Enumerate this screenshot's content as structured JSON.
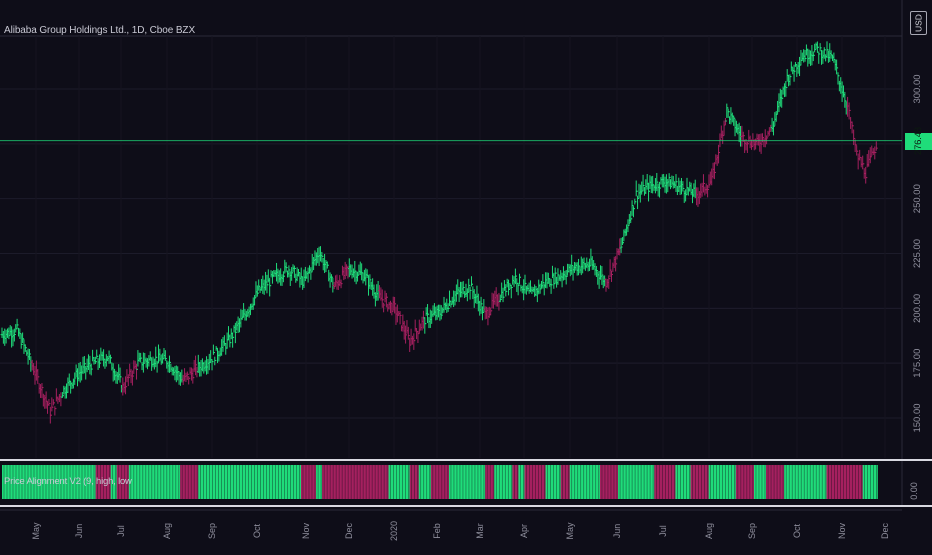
{
  "header": {
    "title": "Alibaba Group Holdings Ltd., 1D, Cboe BZX",
    "currency": "USD"
  },
  "indicator": {
    "label": "Price Alignment V2 (9, high, low",
    "zero_label": "0.00"
  },
  "colors": {
    "background": "#0e0d18",
    "up": "#1fdc7a",
    "down": "#a5205f",
    "last_price": "#1fdc7a",
    "grid": "#1c1b2a"
  },
  "chart_data": [
    {
      "type": "ohlc-bar",
      "title": "Alibaba Group Holdings Ltd., 1D, Cboe BZX",
      "y_axis": {
        "ticks": [
          150,
          175,
          200,
          225,
          250,
          300
        ],
        "tick_labels": [
          "150.00",
          "175.00",
          "200.00",
          "225.00",
          "250.00",
          "300.00"
        ],
        "ylim": [
          143,
          336
        ],
        "side": "right"
      },
      "x_axis": {
        "tick_labels": [
          "May",
          "Jun",
          "Jul",
          "Aug",
          "Sep",
          "Oct",
          "Nov",
          "Dec",
          "2020",
          "Feb",
          "Mar",
          "Apr",
          "May",
          "Jun",
          "Jul",
          "Aug",
          "Sep",
          "Oct",
          "Nov",
          "Dec"
        ]
      },
      "last_price": 276.48,
      "last_price_label": "276.48",
      "close_series_approx": [
        {
          "m": 0.0,
          "close": 188,
          "dir": "up"
        },
        {
          "m": 0.5,
          "close": 190,
          "dir": "up"
        },
        {
          "m": 1.0,
          "close": 174,
          "dir": "down"
        },
        {
          "m": 1.6,
          "close": 153,
          "dir": "down"
        },
        {
          "m": 2.0,
          "close": 162,
          "dir": "up"
        },
        {
          "m": 2.5,
          "close": 170,
          "dir": "up"
        },
        {
          "m": 3.0,
          "close": 175,
          "dir": "up"
        },
        {
          "m": 3.5,
          "close": 178,
          "dir": "up"
        },
        {
          "m": 4.0,
          "close": 164,
          "dir": "down"
        },
        {
          "m": 4.5,
          "close": 175,
          "dir": "up"
        },
        {
          "m": 5.0,
          "close": 177,
          "dir": "up"
        },
        {
          "m": 5.5,
          "close": 176,
          "dir": "up"
        },
        {
          "m": 6.0,
          "close": 167,
          "dir": "down"
        },
        {
          "m": 6.5,
          "close": 173,
          "dir": "up"
        },
        {
          "m": 7.0,
          "close": 178,
          "dir": "up"
        },
        {
          "m": 7.5,
          "close": 185,
          "dir": "up"
        },
        {
          "m": 8.0,
          "close": 196,
          "dir": "up"
        },
        {
          "m": 8.5,
          "close": 208,
          "dir": "up"
        },
        {
          "m": 9.0,
          "close": 214,
          "dir": "up"
        },
        {
          "m": 9.5,
          "close": 218,
          "dir": "up"
        },
        {
          "m": 10.0,
          "close": 212,
          "dir": "up"
        },
        {
          "m": 10.5,
          "close": 226,
          "dir": "up"
        },
        {
          "m": 11.0,
          "close": 210,
          "dir": "down"
        },
        {
          "m": 11.5,
          "close": 218,
          "dir": "up"
        },
        {
          "m": 12.0,
          "close": 215,
          "dir": "up"
        },
        {
          "m": 12.5,
          "close": 205,
          "dir": "down"
        },
        {
          "m": 13.0,
          "close": 200,
          "dir": "down"
        },
        {
          "m": 13.5,
          "close": 185,
          "dir": "down"
        },
        {
          "m": 14.0,
          "close": 195,
          "dir": "up"
        },
        {
          "m": 14.5,
          "close": 198,
          "dir": "up"
        },
        {
          "m": 15.0,
          "close": 206,
          "dir": "up"
        },
        {
          "m": 15.5,
          "close": 210,
          "dir": "up"
        },
        {
          "m": 16.0,
          "close": 197,
          "dir": "down"
        },
        {
          "m": 16.5,
          "close": 206,
          "dir": "up"
        },
        {
          "m": 17.0,
          "close": 214,
          "dir": "up"
        },
        {
          "m": 17.5,
          "close": 206,
          "dir": "up"
        },
        {
          "m": 18.0,
          "close": 212,
          "dir": "up"
        },
        {
          "m": 18.5,
          "close": 215,
          "dir": "up"
        },
        {
          "m": 19.0,
          "close": 219,
          "dir": "up"
        },
        {
          "m": 19.5,
          "close": 220,
          "dir": "up"
        },
        {
          "m": 20.0,
          "close": 212,
          "dir": "down"
        },
        {
          "m": 20.5,
          "close": 228,
          "dir": "up"
        },
        {
          "m": 21.0,
          "close": 252,
          "dir": "up"
        },
        {
          "m": 21.5,
          "close": 256,
          "dir": "up"
        },
        {
          "m": 22.0,
          "close": 258,
          "dir": "up"
        },
        {
          "m": 22.5,
          "close": 255,
          "dir": "up"
        },
        {
          "m": 23.0,
          "close": 252,
          "dir": "down"
        },
        {
          "m": 23.5,
          "close": 258,
          "dir": "down"
        },
        {
          "m": 24.0,
          "close": 290,
          "dir": "up"
        },
        {
          "m": 24.5,
          "close": 278,
          "dir": "down"
        },
        {
          "m": 25.0,
          "close": 275,
          "dir": "down"
        },
        {
          "m": 25.5,
          "close": 282,
          "dir": "up"
        },
        {
          "m": 26.0,
          "close": 305,
          "dir": "up"
        },
        {
          "m": 26.5,
          "close": 315,
          "dir": "up"
        },
        {
          "m": 27.0,
          "close": 318,
          "dir": "up"
        },
        {
          "m": 27.5,
          "close": 314,
          "dir": "up"
        },
        {
          "m": 28.0,
          "close": 292,
          "dir": "down"
        },
        {
          "m": 28.3,
          "close": 270,
          "dir": "down"
        },
        {
          "m": 28.6,
          "close": 262,
          "dir": "down"
        },
        {
          "m": 29.0,
          "close": 276.48,
          "dir": "up"
        }
      ]
    },
    {
      "type": "histogram",
      "title": "Price Alignment V2 (9, high, low",
      "y_axis": {
        "tick_labels": [
          "0.00"
        ]
      },
      "segments": [
        {
          "dir": "up",
          "from": 0.0,
          "to": 3.1
        },
        {
          "dir": "down",
          "from": 3.1,
          "to": 3.6
        },
        {
          "dir": "up",
          "from": 3.6,
          "to": 3.8
        },
        {
          "dir": "down",
          "from": 3.8,
          "to": 4.2
        },
        {
          "dir": "up",
          "from": 4.2,
          "to": 5.9
        },
        {
          "dir": "down",
          "from": 5.9,
          "to": 6.5
        },
        {
          "dir": "up",
          "from": 6.5,
          "to": 9.9
        },
        {
          "dir": "down",
          "from": 9.9,
          "to": 10.4
        },
        {
          "dir": "up",
          "from": 10.4,
          "to": 10.6
        },
        {
          "dir": "down",
          "from": 10.6,
          "to": 12.8
        },
        {
          "dir": "up",
          "from": 12.8,
          "to": 13.5
        },
        {
          "dir": "down",
          "from": 13.5,
          "to": 13.8
        },
        {
          "dir": "up",
          "from": 13.8,
          "to": 14.2
        },
        {
          "dir": "down",
          "from": 14.2,
          "to": 14.8
        },
        {
          "dir": "up",
          "from": 14.8,
          "to": 16.0
        },
        {
          "dir": "down",
          "from": 16.0,
          "to": 16.3
        },
        {
          "dir": "up",
          "from": 16.3,
          "to": 16.9
        },
        {
          "dir": "down",
          "from": 16.9,
          "to": 17.1
        },
        {
          "dir": "up",
          "from": 17.1,
          "to": 17.3
        },
        {
          "dir": "down",
          "from": 17.3,
          "to": 18.0
        },
        {
          "dir": "up",
          "from": 18.0,
          "to": 18.5
        },
        {
          "dir": "down",
          "from": 18.5,
          "to": 18.8
        },
        {
          "dir": "up",
          "from": 18.8,
          "to": 19.8
        },
        {
          "dir": "down",
          "from": 19.8,
          "to": 20.4
        },
        {
          "dir": "up",
          "from": 20.4,
          "to": 21.6
        },
        {
          "dir": "down",
          "from": 21.6,
          "to": 22.3
        },
        {
          "dir": "up",
          "from": 22.3,
          "to": 22.8
        },
        {
          "dir": "down",
          "from": 22.8,
          "to": 23.4
        },
        {
          "dir": "up",
          "from": 23.4,
          "to": 24.3
        },
        {
          "dir": "down",
          "from": 24.3,
          "to": 24.9
        },
        {
          "dir": "up",
          "from": 24.9,
          "to": 25.3
        },
        {
          "dir": "down",
          "from": 25.3,
          "to": 25.9
        },
        {
          "dir": "up",
          "from": 25.9,
          "to": 27.3
        },
        {
          "dir": "down",
          "from": 27.3,
          "to": 28.5
        },
        {
          "dir": "up",
          "from": 28.5,
          "to": 29.0
        }
      ]
    }
  ]
}
